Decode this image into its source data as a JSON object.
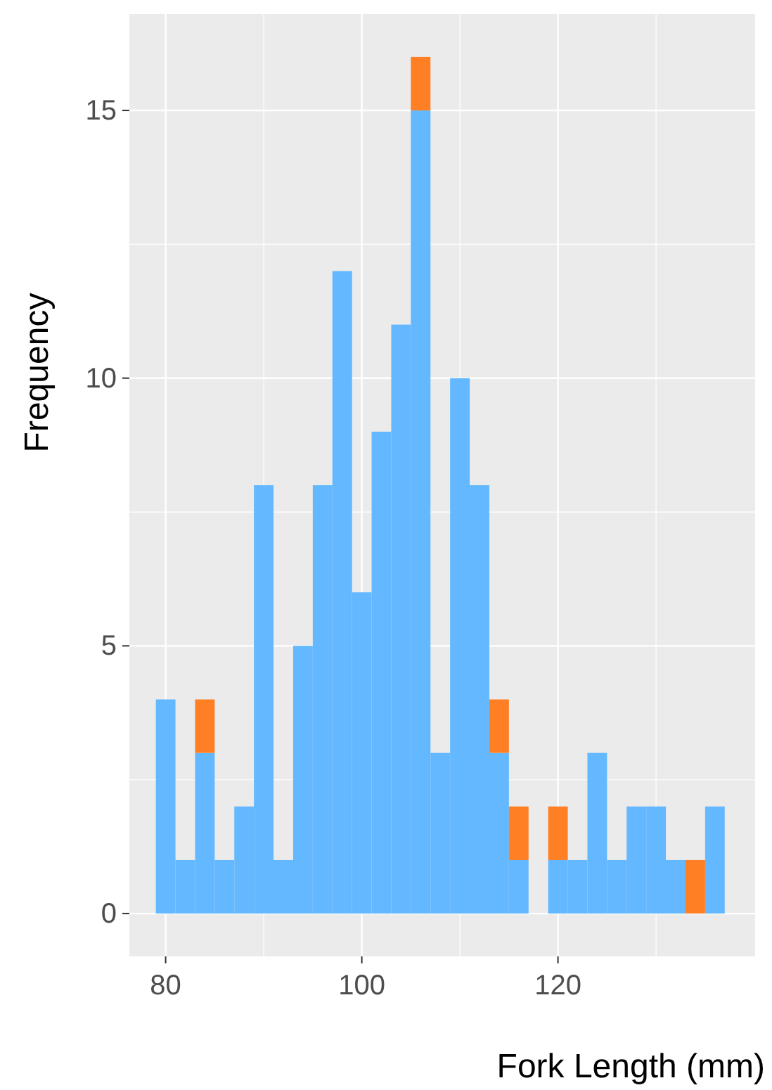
{
  "chart_data": {
    "type": "bar",
    "xlabel": "Fork Length (mm)",
    "ylabel": "Frequency",
    "x": [
      80,
      82,
      84,
      86,
      88,
      90,
      92,
      94,
      96,
      98,
      100,
      102,
      104,
      106,
      108,
      110,
      112,
      114,
      116,
      118,
      120,
      122,
      124,
      126,
      128,
      130,
      132,
      134,
      136
    ],
    "stacked": true,
    "series": [
      {
        "color": "#63b8ff",
        "values": [
          4,
          1,
          3,
          1,
          2,
          8,
          1,
          5,
          8,
          12,
          6,
          9,
          11,
          15,
          3,
          10,
          8,
          3,
          1,
          0,
          1,
          1,
          3,
          1,
          2,
          2,
          1,
          0,
          2
        ]
      },
      {
        "color": "#ff7f24",
        "values": [
          0,
          0,
          1,
          0,
          0,
          0,
          0,
          0,
          0,
          0,
          0,
          0,
          0,
          1,
          0,
          0,
          0,
          1,
          1,
          0,
          1,
          0,
          0,
          0,
          0,
          0,
          0,
          1,
          0
        ]
      }
    ],
    "xlim": [
      76.3,
      140.1
    ],
    "xticks": [
      80,
      100,
      120
    ],
    "ylim": [
      -0.8,
      16.8
    ],
    "yticks": [
      0,
      5,
      10,
      15
    ],
    "grid": true
  }
}
